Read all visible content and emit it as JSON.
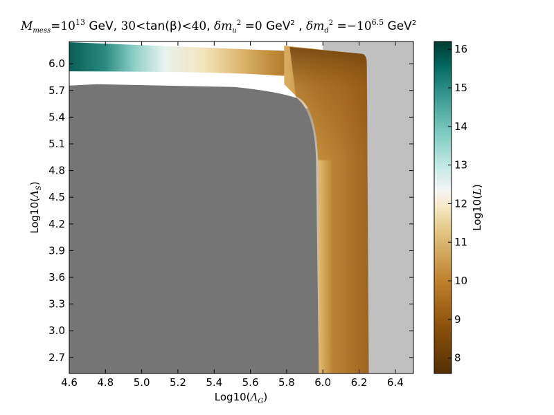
{
  "chart_data": {
    "type": "heatmap",
    "title": {
      "m_mess": "M",
      "m_mess_sub": "mess",
      "m_mess_eq": "=10",
      "m_mess_exp": "13",
      "gev1": " GeV, ",
      "tan_lo": "30",
      "tan_lt1": "<",
      "tan_text": "tan(β)",
      "tan_lt2": "<",
      "tan_hi": "40",
      "comma1": ", ",
      "dmu": "δm",
      "dmu_sub": "u",
      "dmu_sup": "2",
      "dmu_eq": " =0",
      "gev2": " GeV",
      "gev2_sup": "2",
      "comma2": " , ",
      "dmd": "δm",
      "dmd_sub": "d",
      "dmd_sup": "2",
      "dmd_eq": " =−10",
      "dmd_exp": "6.5",
      "gev3": " GeV",
      "gev3_sup": "2"
    },
    "xlabel": {
      "prefix": "Log10(",
      "sym": "Λ",
      "sub": "G",
      "suffix": ")"
    },
    "ylabel": {
      "prefix": "Log10(",
      "sym": "Λ",
      "sub": "S",
      "suffix": ")"
    },
    "xlim": [
      4.6,
      6.5
    ],
    "ylim": [
      2.52,
      6.25
    ],
    "xticks": [
      "4.6",
      "4.8",
      "5.0",
      "5.2",
      "5.4",
      "5.6",
      "5.8",
      "6.0",
      "6.2",
      "6.4"
    ],
    "yticks": [
      "2.7",
      "3.0",
      "3.3",
      "3.6",
      "3.9",
      "4.2",
      "4.5",
      "4.8",
      "5.1",
      "5.4",
      "5.7",
      "6.0"
    ],
    "colorbar": {
      "label": {
        "prefix": "Log10(",
        "sym": "L",
        "suffix": ")"
      },
      "range": [
        7.6,
        16.2
      ],
      "ticks": [
        "8",
        "9",
        "10",
        "11",
        "12",
        "13",
        "14",
        "15",
        "16"
      ],
      "colors": {
        "low": "#543005",
        "mid_low": "#bf812d",
        "mid": "#f5f5f5",
        "mid_high": "#80cdc1",
        "high": "#003c30"
      }
    },
    "regions": {
      "excluded_color": "#757575",
      "background_color": "#c0c0c0",
      "unexplored_color": "#ffffff",
      "boundary_x_min": 5.97,
      "boundary_x_max": 6.25,
      "excluded_top_y": 5.77,
      "high_band_y": 5.93
    }
  }
}
